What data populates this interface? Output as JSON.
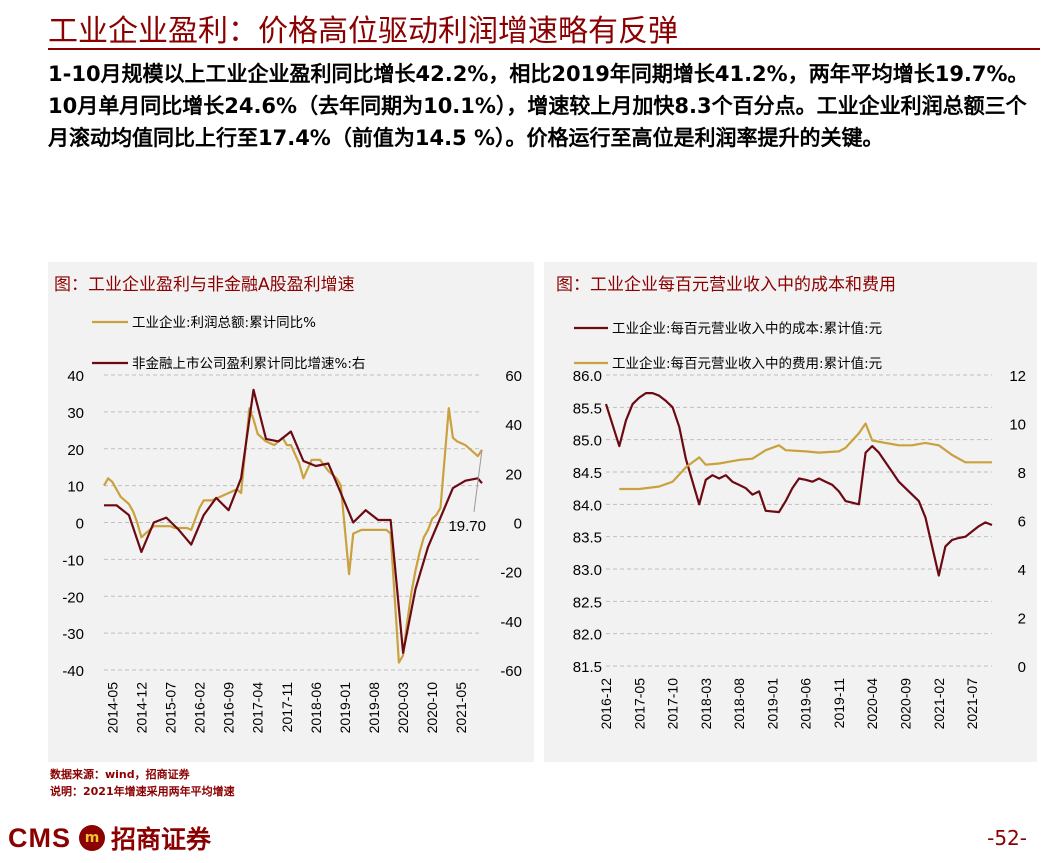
{
  "page": {
    "title": "工业企业盈利：价格高位驱动利润增速略有反弹",
    "summary": "1-10月规模以上工业企业盈利同比增长42.2%，相比2019年同期增长41.2%，两年平均增长19.7%。10月单月同比增长24.6%（去年同期为10.1%），增速较上月加快8.3个百分点。工业企业利润总额三个月滚动均值同比上行至17.4%（前值为14.5 %）。价格运行至高位是利润率提升的关键。",
    "source": "数据来源：wind，招商证券",
    "note": "说明：2021年增速采用两年平均增速",
    "logo_text": "CMS",
    "logo_badge": "m",
    "logo_name": "招商证券",
    "page_number": "-52-"
  },
  "colors": {
    "brand": "#8B0000",
    "series_gold": "#C9A23F",
    "series_dark": "#6B0A12",
    "panel_bg": "#f2f2f2"
  },
  "chart_data": [
    {
      "type": "line",
      "title": "图：工业企业盈利与非金融A股盈利增速",
      "x_ticks": [
        "2014-05",
        "2014-12",
        "2015-07",
        "2016-02",
        "2016-09",
        "2017-04",
        "2017-11",
        "2018-06",
        "2019-01",
        "2019-08",
        "2020-03",
        "2020-10",
        "2021-05"
      ],
      "x_range": [
        "2014-03",
        "2021-10"
      ],
      "ylim_left": [
        -40,
        40
      ],
      "yticks_left": [
        "40",
        "30",
        "20",
        "10",
        "0",
        "-10",
        "-20",
        "-30",
        "-40"
      ],
      "ylim_right": [
        -60,
        60
      ],
      "yticks_right": [
        "60",
        "40",
        "20",
        "0",
        "-20",
        "-40",
        "-60"
      ],
      "grid": true,
      "legend_position": "top",
      "annotation": "19.70",
      "series": [
        {
          "name": "工业企业:利润总额:累计同比%",
          "axis": "left",
          "color": "#C9A23F",
          "points": [
            [
              "2014-03",
              10
            ],
            [
              "2014-04",
              12
            ],
            [
              "2014-05",
              11
            ],
            [
              "2014-06",
              9
            ],
            [
              "2014-07",
              7
            ],
            [
              "2014-08",
              6
            ],
            [
              "2014-09",
              5
            ],
            [
              "2014-10",
              3
            ],
            [
              "2014-11",
              0
            ],
            [
              "2014-12",
              -4
            ],
            [
              "2015-01",
              -3
            ],
            [
              "2015-03",
              -1
            ],
            [
              "2015-05",
              -1
            ],
            [
              "2015-07",
              -1
            ],
            [
              "2015-08",
              -1.5
            ],
            [
              "2015-09",
              -1.5
            ],
            [
              "2015-10",
              -1.5
            ],
            [
              "2015-11",
              -1.5
            ],
            [
              "2015-12",
              -2
            ],
            [
              "2016-02",
              4
            ],
            [
              "2016-03",
              6
            ],
            [
              "2016-05",
              6
            ],
            [
              "2016-07",
              7
            ],
            [
              "2016-09",
              8
            ],
            [
              "2016-11",
              9
            ],
            [
              "2016-12",
              8
            ],
            [
              "2017-02",
              31
            ],
            [
              "2017-03",
              28
            ],
            [
              "2017-04",
              24
            ],
            [
              "2017-06",
              22
            ],
            [
              "2017-08",
              21
            ],
            [
              "2017-10",
              23
            ],
            [
              "2017-11",
              21
            ],
            [
              "2017-12",
              21
            ],
            [
              "2018-02",
              16
            ],
            [
              "2018-03",
              12
            ],
            [
              "2018-05",
              17
            ],
            [
              "2018-07",
              17
            ],
            [
              "2018-09",
              14
            ],
            [
              "2018-11",
              12
            ],
            [
              "2018-12",
              10
            ],
            [
              "2019-02",
              -14
            ],
            [
              "2019-03",
              -3
            ],
            [
              "2019-05",
              -2
            ],
            [
              "2019-07",
              -2
            ],
            [
              "2019-09",
              -2
            ],
            [
              "2019-11",
              -2
            ],
            [
              "2019-12",
              -3
            ],
            [
              "2020-02",
              -38
            ],
            [
              "2020-03",
              -36
            ],
            [
              "2020-04",
              -27
            ],
            [
              "2020-05",
              -19
            ],
            [
              "2020-06",
              -13
            ],
            [
              "2020-07",
              -8
            ],
            [
              "2020-08",
              -4
            ],
            [
              "2020-09",
              -2
            ],
            [
              "2020-10",
              1
            ],
            [
              "2020-11",
              2
            ],
            [
              "2020-12",
              4
            ],
            [
              "2021-02",
              31
            ],
            [
              "2021-03",
              23
            ],
            [
              "2021-04",
              22
            ],
            [
              "2021-06",
              21
            ],
            [
              "2021-08",
              19
            ],
            [
              "2021-09",
              18
            ],
            [
              "2021-10",
              19.7
            ]
          ]
        },
        {
          "name": "非金融上市公司盈利累计同比增速%:右",
          "axis": "right",
          "color": "#6B0A12",
          "points": [
            [
              "2014-03",
              7
            ],
            [
              "2014-06",
              7
            ],
            [
              "2014-09",
              3
            ],
            [
              "2014-12",
              -12
            ],
            [
              "2015-03",
              0
            ],
            [
              "2015-06",
              2
            ],
            [
              "2015-09",
              -3
            ],
            [
              "2015-12",
              -9
            ],
            [
              "2016-03",
              3
            ],
            [
              "2016-06",
              10
            ],
            [
              "2016-09",
              5
            ],
            [
              "2016-12",
              18
            ],
            [
              "2017-03",
              54
            ],
            [
              "2017-06",
              34
            ],
            [
              "2017-09",
              33
            ],
            [
              "2017-12",
              37
            ],
            [
              "2018-03",
              25
            ],
            [
              "2018-06",
              23
            ],
            [
              "2018-09",
              24
            ],
            [
              "2018-12",
              12
            ],
            [
              "2019-03",
              0
            ],
            [
              "2019-06",
              5
            ],
            [
              "2019-09",
              1
            ],
            [
              "2019-12",
              1
            ],
            [
              "2020-03",
              -53
            ],
            [
              "2020-06",
              -27
            ],
            [
              "2020-09",
              -10
            ],
            [
              "2020-12",
              2
            ],
            [
              "2021-03",
              14
            ],
            [
              "2021-06",
              17
            ],
            [
              "2021-09",
              18
            ],
            [
              "2021-10",
              16
            ]
          ]
        }
      ]
    },
    {
      "type": "line",
      "title": "图：工业企业每百元营业收入中的成本和费用",
      "x_ticks": [
        "2016-12",
        "2017-05",
        "2017-10",
        "2018-03",
        "2018-08",
        "2019-01",
        "2019-06",
        "2019-11",
        "2020-04",
        "2020-09",
        "2021-02",
        "2021-07"
      ],
      "x_range": [
        "2016-12",
        "2021-10"
      ],
      "ylim_left": [
        81.5,
        86.0
      ],
      "yticks_left": [
        "86.0",
        "85.5",
        "85.0",
        "84.5",
        "84.0",
        "83.5",
        "83.0",
        "82.5",
        "82.0",
        "81.5"
      ],
      "ylim_right": [
        0,
        12
      ],
      "yticks_right": [
        "12",
        "10",
        "8",
        "6",
        "4",
        "2",
        "0"
      ],
      "grid": true,
      "legend_position": "top",
      "series": [
        {
          "name": "工业企业:每百元营业收入中的成本:累计值:元",
          "axis": "left",
          "color": "#6B0A12",
          "points": [
            [
              "2016-12",
              85.55
            ],
            [
              "2017-02",
              84.9
            ],
            [
              "2017-03",
              85.3
            ],
            [
              "2017-04",
              85.55
            ],
            [
              "2017-05",
              85.65
            ],
            [
              "2017-06",
              85.72
            ],
            [
              "2017-07",
              85.72
            ],
            [
              "2017-08",
              85.68
            ],
            [
              "2017-09",
              85.6
            ],
            [
              "2017-10",
              85.5
            ],
            [
              "2017-11",
              85.2
            ],
            [
              "2017-12",
              84.7
            ],
            [
              "2018-02",
              84.0
            ],
            [
              "2018-03",
              84.38
            ],
            [
              "2018-04",
              84.45
            ],
            [
              "2018-05",
              84.4
            ],
            [
              "2018-06",
              84.45
            ],
            [
              "2018-07",
              84.35
            ],
            [
              "2018-08",
              84.3
            ],
            [
              "2018-09",
              84.25
            ],
            [
              "2018-10",
              84.15
            ],
            [
              "2018-11",
              84.2
            ],
            [
              "2018-12",
              83.9
            ],
            [
              "2019-02",
              83.88
            ],
            [
              "2019-03",
              84.05
            ],
            [
              "2019-04",
              84.25
            ],
            [
              "2019-05",
              84.4
            ],
            [
              "2019-06",
              84.38
            ],
            [
              "2019-07",
              84.35
            ],
            [
              "2019-08",
              84.4
            ],
            [
              "2019-09",
              84.35
            ],
            [
              "2019-10",
              84.3
            ],
            [
              "2019-11",
              84.2
            ],
            [
              "2019-12",
              84.05
            ],
            [
              "2020-02",
              84.0
            ],
            [
              "2020-03",
              84.8
            ],
            [
              "2020-04",
              84.9
            ],
            [
              "2020-05",
              84.8
            ],
            [
              "2020-06",
              84.65
            ],
            [
              "2020-07",
              84.5
            ],
            [
              "2020-08",
              84.35
            ],
            [
              "2020-09",
              84.25
            ],
            [
              "2020-10",
              84.15
            ],
            [
              "2020-11",
              84.05
            ],
            [
              "2020-12",
              83.8
            ],
            [
              "2021-02",
              82.9
            ],
            [
              "2021-03",
              83.35
            ],
            [
              "2021-04",
              83.45
            ],
            [
              "2021-05",
              83.48
            ],
            [
              "2021-06",
              83.5
            ],
            [
              "2021-07",
              83.58
            ],
            [
              "2021-08",
              83.66
            ],
            [
              "2021-09",
              83.72
            ],
            [
              "2021-10",
              83.68
            ]
          ]
        },
        {
          "name": "工业企业:每百元营业收入中的费用:累计值:元",
          "axis": "right",
          "color": "#C9A23F",
          "points": [
            [
              "2017-02",
              7.3
            ],
            [
              "2017-05",
              7.3
            ],
            [
              "2017-08",
              7.4
            ],
            [
              "2017-10",
              7.6
            ],
            [
              "2017-12",
              8.2
            ],
            [
              "2018-02",
              8.6
            ],
            [
              "2018-03",
              8.3
            ],
            [
              "2018-05",
              8.35
            ],
            [
              "2018-08",
              8.5
            ],
            [
              "2018-10",
              8.55
            ],
            [
              "2018-12",
              8.9
            ],
            [
              "2019-02",
              9.1
            ],
            [
              "2019-03",
              8.9
            ],
            [
              "2019-06",
              8.85
            ],
            [
              "2019-08",
              8.8
            ],
            [
              "2019-11",
              8.85
            ],
            [
              "2019-12",
              9.0
            ],
            [
              "2020-02",
              9.6
            ],
            [
              "2020-03",
              10.0
            ],
            [
              "2020-04",
              9.3
            ],
            [
              "2020-06",
              9.2
            ],
            [
              "2020-08",
              9.1
            ],
            [
              "2020-10",
              9.1
            ],
            [
              "2020-11",
              9.15
            ],
            [
              "2020-12",
              9.2
            ],
            [
              "2021-02",
              9.1
            ],
            [
              "2021-04",
              8.7
            ],
            [
              "2021-06",
              8.4
            ],
            [
              "2021-08",
              8.4
            ],
            [
              "2021-10",
              8.4
            ]
          ]
        }
      ]
    }
  ]
}
